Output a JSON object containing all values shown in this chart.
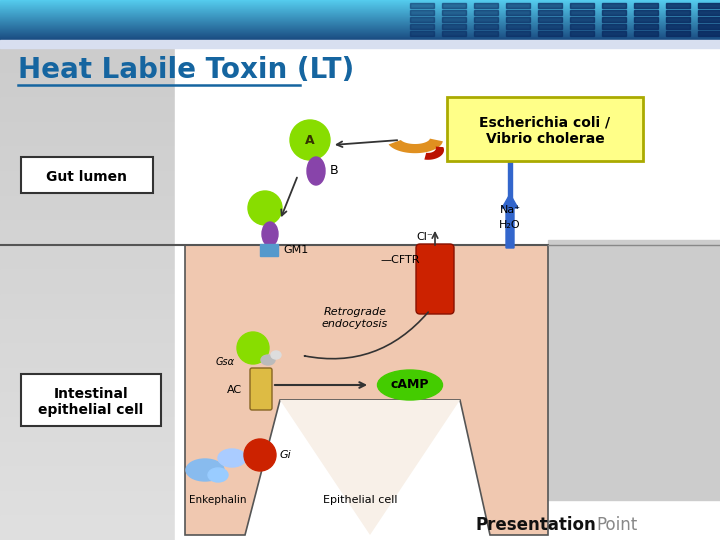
{
  "title": "Heat Labile Toxin (LT)",
  "title_color": "#1565A0",
  "title_fontsize": 20,
  "label_gut_lumen": "Gut lumen",
  "label_intestinal": "Intestinal\nepithelial cell",
  "label_ecoli": "Escherichia coli /\nVibrio cholerae",
  "label_ecoli_bg": "#FFFF88",
  "label_ecoli_border": "#AAAA00",
  "bg_white": "#FFFFFF",
  "bg_left_gray": "#CCCCCC",
  "bg_right_gray": "#C0C0C0",
  "cell_bg": "#F0C8B0",
  "header_color_left": "#55CCEE",
  "header_color_right": "#1A4A80",
  "sep_color": "#D0D8E8",
  "green_circle": "#88DD00",
  "purple_barrel": "#8844AA",
  "blue_gm1": "#5599CC",
  "red_cftr": "#CC2200",
  "yellow_ac": "#DDBB44",
  "camp_green": "#44CC00",
  "blue_arrow": "#3366CC",
  "gi_red": "#CC2200",
  "enkephalin_blue": "#66AADD",
  "orange_bacteria": "#E09020",
  "dark_red_bacteria": "#BB1100"
}
